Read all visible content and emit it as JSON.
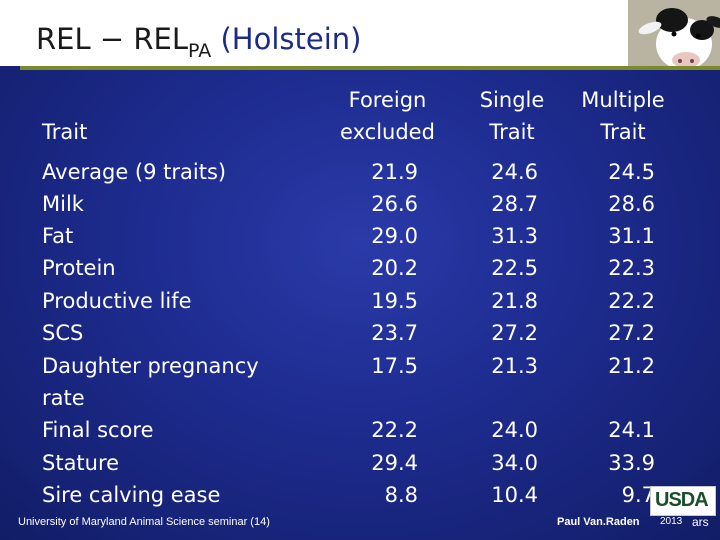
{
  "title": {
    "main": "REL − REL",
    "subscript": "PA",
    "paren": " (Holstein)"
  },
  "table": {
    "headers": {
      "trait": "Trait",
      "foreign_line1": "Foreign",
      "foreign_line2": "excluded",
      "single_line1": "Single",
      "single_line2": "Trait",
      "multiple_line1": "Multiple",
      "multiple_line2": "Trait"
    },
    "rows": [
      {
        "trait": "Average (9 traits)",
        "foreign": "21.9",
        "single": "24.6",
        "multiple": "24.5"
      },
      {
        "trait": "Milk",
        "foreign": "26.6",
        "single": "28.7",
        "multiple": "28.6"
      },
      {
        "trait": "Fat",
        "foreign": "29.0",
        "single": "31.3",
        "multiple": "31.1"
      },
      {
        "trait": "Protein",
        "foreign": "20.2",
        "single": "22.5",
        "multiple": "22.3"
      },
      {
        "trait": "Productive life",
        "foreign": "19.5",
        "single": "21.8",
        "multiple": "22.2"
      },
      {
        "trait": "SCS",
        "foreign": "23.7",
        "single": "27.2",
        "multiple": "27.2"
      },
      {
        "trait": "Daughter pregnancy",
        "foreign": "17.5",
        "single": "21.3",
        "multiple": "21.2"
      },
      {
        "trait": "rate",
        "foreign": "",
        "single": "",
        "multiple": ""
      },
      {
        "trait": "Final score",
        "foreign": "22.2",
        "single": "24.0",
        "multiple": "24.1"
      },
      {
        "trait": "Stature",
        "foreign": "29.4",
        "single": "34.0",
        "multiple": "33.9"
      },
      {
        "trait": "Sire calving ease",
        "foreign": "8.8",
        "single": "10.4",
        "multiple": "9.7"
      }
    ]
  },
  "footer": {
    "seminar": "University of Maryland Animal Science seminar (14)",
    "author": "Paul Van.Raden",
    "logo_text": "USDA",
    "logo_year": "2013",
    "logo_org": "ars"
  },
  "colors": {
    "background": "#1d2b8e",
    "title_rule": "#7d8a2c",
    "title_paren": "#1c2a8a"
  },
  "icons": {
    "corner_image": "holstein-cow-icon",
    "logo": "usda-logo-icon"
  }
}
